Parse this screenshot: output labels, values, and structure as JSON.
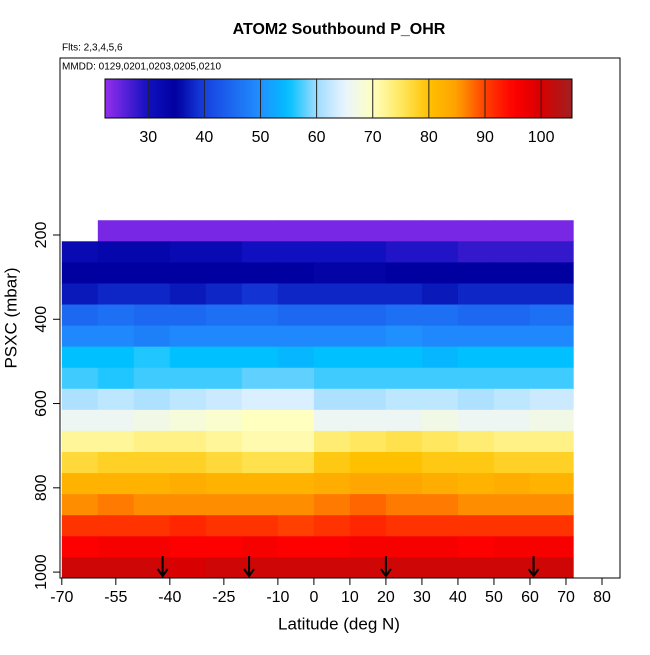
{
  "chart_data": {
    "type": "heatmap",
    "title": "ATOM2 Southbound P_OHR",
    "subtitle": "Flts: 2,3,4,5,6",
    "annotation": "MMDD: 0129,0201,0203,0205,0210",
    "xlabel": "Latitude (deg N)",
    "ylabel": "PSXC (mbar)",
    "xlim": [
      -70.5,
      85
    ],
    "ylim": [
      1014,
      -220
    ],
    "xticks": [
      -70,
      -55,
      -40,
      -25,
      -10,
      0,
      10,
      20,
      30,
      40,
      50,
      60,
      70,
      80
    ],
    "yticks": [
      200,
      400,
      600,
      800,
      1000
    ],
    "zlim": [
      22.3,
      105.5
    ],
    "zticks": [
      30,
      40,
      50,
      60,
      70,
      80,
      90,
      100
    ],
    "colorscale": [
      [
        22,
        "#9a30f0"
      ],
      [
        30,
        "#1010c0"
      ],
      [
        35,
        "#0000a0"
      ],
      [
        40,
        "#1840e0"
      ],
      [
        50,
        "#2090ff"
      ],
      [
        55,
        "#00c0ff"
      ],
      [
        60,
        "#a0dcff"
      ],
      [
        65,
        "#e8f4ff"
      ],
      [
        70,
        "#ffffc0"
      ],
      [
        75,
        "#ffe860"
      ],
      [
        80,
        "#ffc000"
      ],
      [
        85,
        "#ffa000"
      ],
      [
        90,
        "#ff4000"
      ],
      [
        95,
        "#ff0000"
      ],
      [
        100,
        "#d80000"
      ],
      [
        105.5,
        "#a02020"
      ]
    ],
    "lat_edges": [
      -70,
      -60,
      -50,
      -40,
      -30,
      -20,
      -10,
      0,
      10,
      20,
      30,
      40,
      50,
      60,
      72
    ],
    "pressure": [
      190,
      240,
      290,
      340,
      390,
      440,
      490,
      540,
      590,
      640,
      690,
      740,
      790,
      840,
      890,
      940,
      990
    ],
    "values": [
      [
        null,
        24,
        24,
        24,
        24,
        24,
        24,
        24,
        24,
        24,
        24,
        24,
        24,
        24
      ],
      [
        32,
        33,
        33,
        32,
        32,
        30,
        30,
        30,
        30,
        29,
        29,
        28,
        28,
        28
      ],
      [
        35,
        35,
        35,
        35,
        35,
        35,
        35,
        34,
        34,
        35,
        35,
        35,
        35,
        35
      ],
      [
        37,
        38,
        38,
        37,
        38,
        39,
        38,
        38,
        38,
        38,
        37,
        38,
        38,
        38
      ],
      [
        45,
        46,
        45,
        45,
        46,
        46,
        45,
        45,
        45,
        46,
        46,
        45,
        45,
        46
      ],
      [
        49,
        49,
        48,
        49,
        49,
        49,
        49,
        49,
        49,
        50,
        49,
        49,
        49,
        49
      ],
      [
        55,
        55,
        56,
        55,
        55,
        55,
        54,
        55,
        55,
        55,
        54,
        55,
        55,
        55
      ],
      [
        57,
        56,
        57,
        57,
        57,
        58,
        58,
        57,
        57,
        57,
        57,
        57,
        57,
        57
      ],
      [
        61,
        62,
        61,
        62,
        63,
        64,
        64,
        61,
        61,
        62,
        62,
        61,
        62,
        63
      ],
      [
        66,
        66,
        67,
        68,
        69,
        70,
        70,
        66,
        66,
        66,
        67,
        66,
        66,
        67
      ],
      [
        72,
        72,
        73,
        73,
        72,
        71,
        71,
        74,
        75,
        76,
        75,
        74,
        73,
        73
      ],
      [
        77,
        78,
        78,
        78,
        77,
        76,
        76,
        79,
        80,
        80,
        79,
        79,
        78,
        78
      ],
      [
        82,
        82,
        82,
        83,
        82,
        82,
        82,
        83,
        84,
        84,
        83,
        82,
        83,
        82
      ],
      [
        86,
        87,
        86,
        86,
        86,
        86,
        86,
        87,
        88,
        87,
        87,
        86,
        86,
        86
      ],
      [
        91,
        91,
        91,
        92,
        91,
        91,
        90,
        91,
        92,
        91,
        91,
        91,
        91,
        91
      ],
      [
        95,
        96,
        96,
        95,
        95,
        96,
        95,
        95,
        96,
        96,
        96,
        95,
        96,
        96
      ],
      [
        101,
        101,
        101,
        100,
        101,
        101,
        101,
        101,
        101,
        101,
        101,
        101,
        101,
        101
      ]
    ],
    "arrows": [
      -42,
      -18,
      20,
      61
    ]
  }
}
